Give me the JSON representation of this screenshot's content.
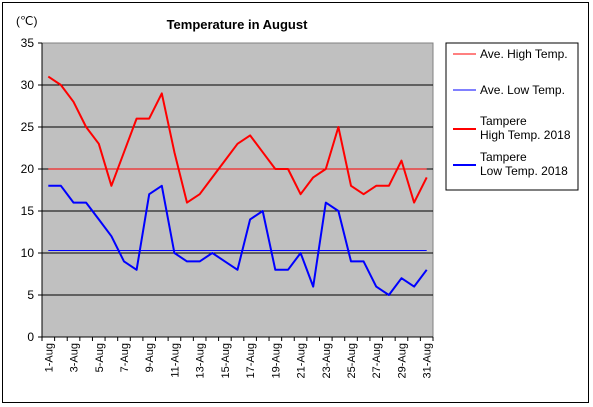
{
  "chart_data": {
    "type": "line",
    "title": "Temperature in August",
    "ylabel": "(℃)",
    "xlabel": "",
    "ylim": [
      0,
      35
    ],
    "yticks": [
      0,
      5,
      10,
      15,
      20,
      25,
      30,
      35
    ],
    "grid": true,
    "legend_position": "right",
    "background_color": "#c0c0c0",
    "categories": [
      "1-Aug",
      "2-Aug",
      "3-Aug",
      "4-Aug",
      "5-Aug",
      "6-Aug",
      "7-Aug",
      "8-Aug",
      "9-Aug",
      "10-Aug",
      "11-Aug",
      "12-Aug",
      "13-Aug",
      "14-Aug",
      "15-Aug",
      "16-Aug",
      "17-Aug",
      "18-Aug",
      "19-Aug",
      "20-Aug",
      "21-Aug",
      "22-Aug",
      "23-Aug",
      "24-Aug",
      "25-Aug",
      "26-Aug",
      "27-Aug",
      "28-Aug",
      "29-Aug",
      "30-Aug",
      "31-Aug"
    ],
    "tick_labels": [
      "1-Aug",
      "3-Aug",
      "5-Aug",
      "7-Aug",
      "9-Aug",
      "11-Aug",
      "13-Aug",
      "15-Aug",
      "17-Aug",
      "19-Aug",
      "21-Aug",
      "23-Aug",
      "25-Aug",
      "27-Aug",
      "29-Aug",
      "31-Aug"
    ],
    "series": [
      {
        "name": "Ave. High Temp.",
        "color": "#ff0000",
        "width": 1,
        "values": [
          20,
          20,
          20,
          20,
          20,
          20,
          20,
          20,
          20,
          20,
          20,
          20,
          20,
          20,
          20,
          20,
          20,
          20,
          20,
          20,
          20,
          20,
          20,
          20,
          20,
          20,
          20,
          20,
          20,
          20,
          20
        ]
      },
      {
        "name": "Ave. Low Temp.",
        "color": "#0000ff",
        "width": 1,
        "values": [
          10.3,
          10.3,
          10.3,
          10.3,
          10.3,
          10.3,
          10.3,
          10.3,
          10.3,
          10.3,
          10.3,
          10.3,
          10.3,
          10.3,
          10.3,
          10.3,
          10.3,
          10.3,
          10.3,
          10.3,
          10.3,
          10.3,
          10.3,
          10.3,
          10.3,
          10.3,
          10.3,
          10.3,
          10.3,
          10.3,
          10.3
        ]
      },
      {
        "name": "Tampere High Temp. 2018",
        "legend_lines": [
          "Tampere",
          "High Temp. 2018"
        ],
        "color": "#ff0000",
        "width": 2,
        "values": [
          31,
          30,
          28,
          25,
          23,
          18,
          22,
          26,
          26,
          29,
          22,
          16,
          17,
          19,
          21,
          23,
          24,
          22,
          20,
          20,
          17,
          19,
          20,
          25,
          18,
          17,
          18,
          18,
          21,
          16,
          19
        ]
      },
      {
        "name": "Tampere Low Temp. 2018",
        "legend_lines": [
          "Tampere",
          "Low Temp. 2018"
        ],
        "color": "#0000ff",
        "width": 2,
        "values": [
          18,
          18,
          16,
          16,
          14,
          12,
          9,
          8,
          17,
          18,
          10,
          9,
          9,
          10,
          9,
          8,
          14,
          15,
          8,
          8,
          10,
          6,
          16,
          15,
          9,
          9,
          6,
          5,
          7,
          6,
          8
        ]
      }
    ]
  }
}
